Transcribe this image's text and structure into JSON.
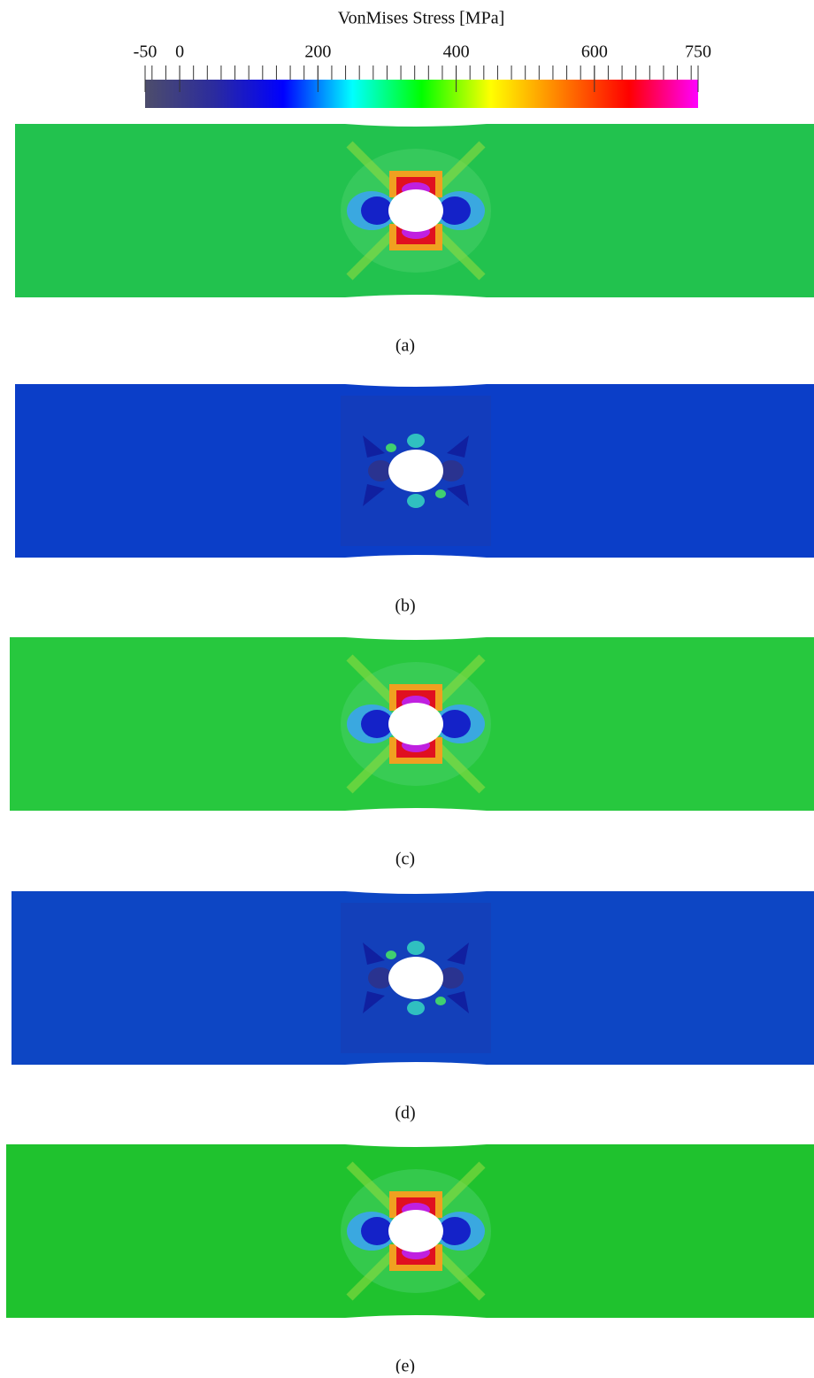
{
  "colorbar": {
    "title": "VonMises Stress [MPa]",
    "lim": [
      -50,
      750
    ],
    "ticks": [
      -50,
      0,
      200,
      400,
      600,
      750
    ],
    "minor_tick_step": 20,
    "colormap": [
      "#4d4d6b",
      "#2b2b9e",
      "#0000ff",
      "#00ffff",
      "#00ff00",
      "#ffff00",
      "#ff8000",
      "#ff0000",
      "#ff00ff"
    ]
  },
  "panels": [
    {
      "caption": "(a)",
      "color": "#22c24e"
    },
    {
      "caption": "(b)",
      "color": "#0b3ec8"
    },
    {
      "caption": "(c)",
      "color": "#27c83e"
    },
    {
      "caption": "(d)",
      "color": "#0d46c4"
    },
    {
      "caption": "(e)",
      "color": "#1fc22e"
    }
  ]
}
